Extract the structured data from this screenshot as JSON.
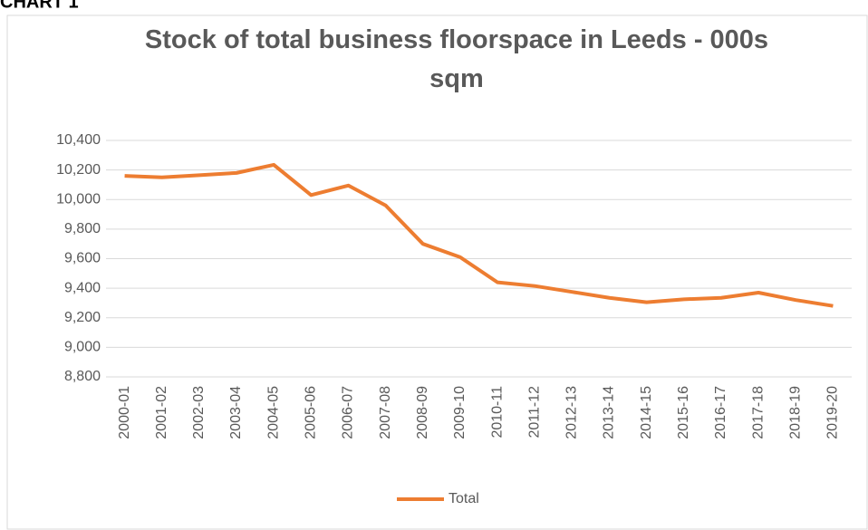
{
  "heading": "CHART 1",
  "chart_data": {
    "type": "line",
    "title": "Stock of total business floorspace in Leeds - 000s sqm",
    "categories": [
      "2000-01",
      "2001-02",
      "2002-03",
      "2003-04",
      "2004-05",
      "2005-06",
      "2006-07",
      "2007-08",
      "2008-09",
      "2009-10",
      "2010-11",
      "2011-12",
      "2012-13",
      "2013-14",
      "2014-15",
      "2015-16",
      "2016-17",
      "2017-18",
      "2018-19",
      "2019-20"
    ],
    "series": [
      {
        "name": "Total",
        "color": "#ed7d31",
        "values": [
          10160,
          10150,
          10165,
          10180,
          10235,
          10030,
          10095,
          9960,
          9700,
          9610,
          9440,
          9415,
          9375,
          9335,
          9305,
          9325,
          9335,
          9370,
          9320,
          9280
        ]
      }
    ],
    "ylim": [
      8800,
      10400
    ],
    "yticks": [
      {
        "value": 8800,
        "label": "8,800"
      },
      {
        "value": 9000,
        "label": "9,000"
      },
      {
        "value": 9200,
        "label": "9,200"
      },
      {
        "value": 9400,
        "label": "9,400"
      },
      {
        "value": 9600,
        "label": "9,600"
      },
      {
        "value": 9800,
        "label": "9,800"
      },
      {
        "value": 10000,
        "label": "10,000"
      },
      {
        "value": 10200,
        "label": "10,200"
      },
      {
        "value": 10400,
        "label": "10,400"
      }
    ],
    "grid": true,
    "legend": "bottom"
  }
}
